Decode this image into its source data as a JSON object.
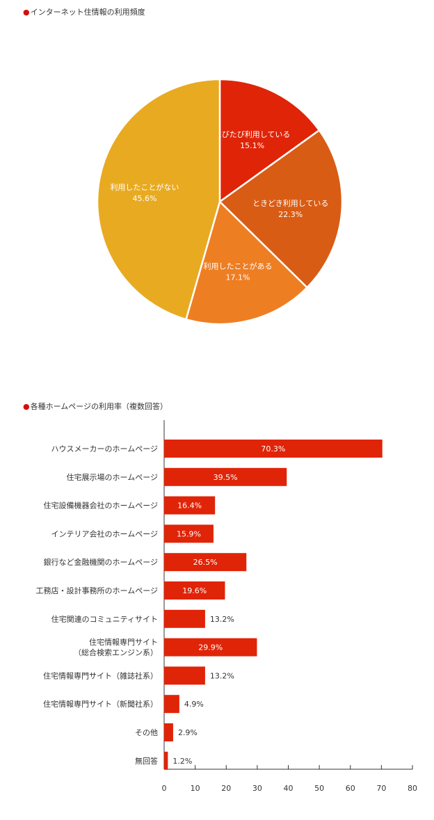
{
  "chart_data": [
    {
      "type": "pie",
      "title": "インターネット住情報の利用頻度",
      "slices": [
        {
          "label": "たびたび利用している",
          "value": 15.1,
          "display": "15.1%",
          "color": "#e02408"
        },
        {
          "label": "ときどき利用している",
          "value": 22.3,
          "display": "22.3%",
          "color": "#d95c14"
        },
        {
          "label": "利用したことがある",
          "value": 17.1,
          "display": "17.1%",
          "color": "#ee7e22"
        },
        {
          "label": "利用したことがない",
          "value": 45.6,
          "display": "45.6%",
          "color": "#e8aa21"
        }
      ]
    },
    {
      "type": "bar",
      "orientation": "horizontal",
      "title": "各種ホームページの利用率（複数回答）",
      "bar_color": "#e02408",
      "xlim": [
        0,
        80
      ],
      "xticks": [
        0,
        10,
        20,
        30,
        40,
        50,
        60,
        70,
        80
      ],
      "categories": [
        [
          "ハウスメーカーのホームページ"
        ],
        [
          "住宅展示場のホームページ"
        ],
        [
          "住宅設備機器会社のホームページ"
        ],
        [
          "インテリア会社のホームページ"
        ],
        [
          "銀行など金融機関のホームページ"
        ],
        [
          "工務店・設計事務所のホームページ"
        ],
        [
          "住宅関連のコミュニティサイト"
        ],
        [
          "住宅情報専門サイト",
          "（総合検索エンジン系）"
        ],
        [
          "住宅情報専門サイト（雑誌社系）"
        ],
        [
          "住宅情報専門サイト（新聞社系）"
        ],
        [
          "その他"
        ],
        [
          "無回答"
        ]
      ],
      "values": [
        70.3,
        39.5,
        16.4,
        15.9,
        26.5,
        19.6,
        13.2,
        29.9,
        13.2,
        4.9,
        2.9,
        1.2
      ],
      "value_labels": [
        "70.3%",
        "39.5%",
        "16.4%",
        "15.9%",
        "26.5%",
        "19.6%",
        "13.2%",
        "29.9%",
        "13.2%",
        "4.9%",
        "2.9%",
        "1.2%"
      ]
    }
  ]
}
